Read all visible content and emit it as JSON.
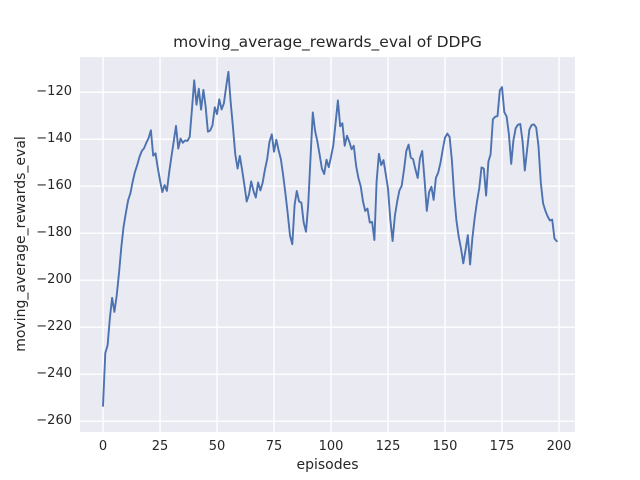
{
  "chart_data": {
    "type": "line",
    "title": "moving_average_rewards_eval of DDPG",
    "xlabel": "episodes",
    "ylabel": "moving_average_rewards_eval",
    "x_ticks": [
      0,
      25,
      50,
      75,
      100,
      125,
      150,
      175,
      200
    ],
    "y_ticks": [
      -120,
      -140,
      -160,
      -180,
      -200,
      -220,
      -240,
      -260
    ],
    "xlim": [
      -10.1,
      207
    ],
    "ylim": [
      -264.6,
      -105
    ],
    "grid": true,
    "legend": null,
    "styles": {
      "fig_bg": "#ffffff",
      "axes_bg": "#eaeaf2",
      "grid_color": "#ffffff",
      "text_color": "#262626",
      "line_color": "#4c72b0"
    },
    "series": [
      {
        "name": "moving_average_rewards_eval",
        "color": "#4c72b0",
        "x_start": 0,
        "x_step": 1,
        "values": [
          -253.5,
          -231.0,
          -227.7,
          -216.0,
          -207.5,
          -213.5,
          -206.5,
          -197.0,
          -186.0,
          -177.5,
          -171.5,
          -166.0,
          -163.0,
          -158.0,
          -154.0,
          -151.0,
          -147.5,
          -145.0,
          -143.8,
          -141.5,
          -139.5,
          -136.2,
          -147.0,
          -146.0,
          -152.0,
          -157.5,
          -162.5,
          -159.5,
          -162.0,
          -154.0,
          -147.5,
          -141.0,
          -134.3,
          -144.0,
          -139.7,
          -141.5,
          -140.5,
          -140.7,
          -139.0,
          -127.0,
          -114.9,
          -125.3,
          -118.5,
          -127.4,
          -119.0,
          -126.0,
          -136.8,
          -136.3,
          -134.0,
          -126.4,
          -129.3,
          -123.0,
          -127.3,
          -124.7,
          -117.5,
          -111.3,
          -124.4,
          -135.0,
          -146.5,
          -152.5,
          -147.1,
          -153.0,
          -159.5,
          -166.5,
          -163.5,
          -157.9,
          -162.0,
          -164.8,
          -158.4,
          -161.8,
          -158.6,
          -153.0,
          -148.4,
          -141.0,
          -137.9,
          -145.3,
          -140.2,
          -144.7,
          -148.5,
          -155.5,
          -163.0,
          -171.5,
          -181.0,
          -184.7,
          -168.0,
          -162.0,
          -166.5,
          -167.0,
          -175.5,
          -179.4,
          -168.0,
          -148.0,
          -128.6,
          -136.5,
          -141.0,
          -146.5,
          -152.5,
          -154.8,
          -148.7,
          -151.9,
          -147.5,
          -142.6,
          -133.0,
          -123.5,
          -134.5,
          -133.2,
          -142.8,
          -138.5,
          -141.0,
          -144.3,
          -142.8,
          -151.3,
          -156.5,
          -160.0,
          -166.5,
          -170.5,
          -169.5,
          -175.5,
          -175.2,
          -182.9,
          -158.0,
          -146.2,
          -151.0,
          -148.9,
          -155.0,
          -161.0,
          -174.0,
          -183.3,
          -172.5,
          -166.5,
          -161.8,
          -159.8,
          -153.0,
          -145.0,
          -142.3,
          -147.8,
          -148.5,
          -152.8,
          -156.5,
          -148.0,
          -145.0,
          -157.0,
          -170.5,
          -162.5,
          -160.2,
          -165.8,
          -156.5,
          -154.2,
          -150.0,
          -144.2,
          -139.3,
          -137.6,
          -139.0,
          -149.0,
          -164.0,
          -174.5,
          -181.5,
          -186.5,
          -192.8,
          -187.0,
          -180.8,
          -193.3,
          -182.0,
          -173.5,
          -166.5,
          -161.0,
          -152.0,
          -152.5,
          -164.0,
          -149.5,
          -146.4,
          -131.5,
          -130.4,
          -130.2,
          -119.2,
          -117.8,
          -128.5,
          -130.3,
          -137.8,
          -150.5,
          -140.5,
          -135.3,
          -133.8,
          -133.5,
          -141.0,
          -153.3,
          -144.5,
          -135.8,
          -133.9,
          -133.7,
          -135.0,
          -143.0,
          -158.5,
          -167.3,
          -170.5,
          -172.8,
          -174.6,
          -174.2,
          -182.3,
          -183.4
        ]
      }
    ]
  }
}
